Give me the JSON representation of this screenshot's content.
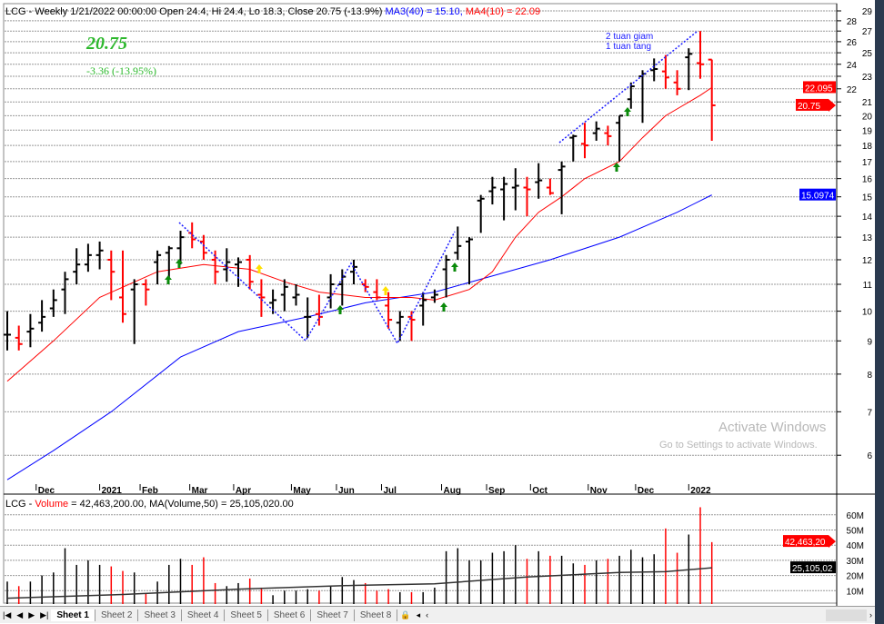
{
  "header": {
    "symbol": "LCG",
    "text": "LCG - Weekly 1/21/2022 00:00:00 Open 24.4, Hi 24.4, Lo 18.3, Close 20.75 (-13.9%)",
    "ma3": "MA3(40) = 15.10,",
    "ma4": "MA4(10) = 22.09"
  },
  "last_price": "20.75",
  "change": "-3.36  (-13.95%)",
  "notes": [
    "2 tuan giam",
    "1 tuan tang"
  ],
  "price_axis": {
    "ticks": [
      29,
      28,
      27,
      26,
      25,
      24,
      23,
      22,
      21,
      20,
      19,
      18,
      17,
      16,
      15,
      14,
      13,
      12,
      11,
      10,
      9,
      8,
      7,
      6
    ],
    "badges": {
      "ma4": "22.095",
      "close": "20.75",
      "ma3": "15.0974"
    }
  },
  "months": [
    {
      "label": "Dec",
      "bar": 2.5
    },
    {
      "label": "2021",
      "bar": 8
    },
    {
      "label": "Feb",
      "bar": 11.5
    },
    {
      "label": "Mar",
      "bar": 15.8
    },
    {
      "label": "Apr",
      "bar": 19.6
    },
    {
      "label": "May",
      "bar": 24.6
    },
    {
      "label": "Jun",
      "bar": 28.5
    },
    {
      "label": "Jul",
      "bar": 32.4
    },
    {
      "label": "Aug",
      "bar": 37.6
    },
    {
      "label": "Sep",
      "bar": 41.5
    },
    {
      "label": "Oct",
      "bar": 45.3
    },
    {
      "label": "Nov",
      "bar": 50.3
    },
    {
      "label": "Dec",
      "bar": 54.4
    },
    {
      "label": "2022",
      "bar": 59
    }
  ],
  "colors": {
    "up": "#000000",
    "down": "#ff0000",
    "ma10": "#ff0000",
    "ma40": "#0000ff"
  },
  "ohlc": [
    [
      9.2,
      10,
      8.7,
      9.2
    ],
    [
      9.1,
      9.5,
      8.7,
      8.9
    ],
    [
      9.3,
      9.9,
      8.8,
      9.4
    ],
    [
      9.6,
      10.4,
      9.3,
      9.8
    ],
    [
      10.1,
      10.8,
      9.8,
      10.4
    ],
    [
      10.8,
      11.5,
      9.9,
      11.2
    ],
    [
      11.5,
      12.5,
      11,
      11.8
    ],
    [
      11.8,
      12.7,
      11.5,
      12.2
    ],
    [
      12.2,
      12.8,
      11.6,
      12.4
    ],
    [
      12,
      12.4,
      10.4,
      11.5
    ],
    [
      10.5,
      12.4,
      9.6,
      9.9
    ],
    [
      10.8,
      11.2,
      8.9,
      11
    ],
    [
      11,
      11.2,
      10.2,
      10.8
    ],
    [
      11.9,
      12.4,
      11,
      12.2
    ],
    [
      12.3,
      12.6,
      11.2,
      12.5
    ],
    [
      12.5,
      13.3,
      11.8,
      13
    ],
    [
      13.2,
      13.7,
      12.5,
      12.9
    ],
    [
      12.8,
      13.1,
      12,
      12.3
    ],
    [
      12,
      12.4,
      11,
      11.5
    ],
    [
      11.6,
      12.5,
      11.1,
      11.9
    ],
    [
      11.8,
      12.1,
      10.9,
      11.9
    ],
    [
      12,
      12.2,
      10.8,
      11.1
    ],
    [
      10.6,
      11.2,
      9.8,
      10.5
    ],
    [
      10.3,
      10.8,
      9.9,
      10.4
    ],
    [
      10.6,
      11.2,
      10,
      10.9
    ],
    [
      10.5,
      11,
      10.2,
      10.6
    ],
    [
      9.8,
      10.5,
      9.1,
      9.8
    ],
    [
      9.9,
      10.6,
      9.5,
      9.8
    ],
    [
      10.5,
      11.4,
      10.1,
      11
    ],
    [
      11,
      11.6,
      10.2,
      11.3
    ],
    [
      11.5,
      12,
      11,
      11.7
    ],
    [
      11,
      11.2,
      10.7,
      10.9
    ],
    [
      10.7,
      11.2,
      10.4,
      10.5
    ],
    [
      10.2,
      10.7,
      9.4,
      9.7
    ],
    [
      9.6,
      10,
      9,
      9.8
    ],
    [
      9.8,
      10,
      9,
      9.7
    ],
    [
      10.2,
      10.7,
      9.5,
      10.4
    ],
    [
      10.5,
      10.8,
      10.3,
      10.6
    ],
    [
      11.6,
      12.2,
      10.5,
      12
    ],
    [
      12.3,
      13.5,
      12,
      12.6
    ],
    [
      12.8,
      13,
      11,
      12.9
    ],
    [
      14.8,
      15.1,
      13.2,
      14.9
    ],
    [
      15.3,
      16.1,
      14.6,
      15.5
    ],
    [
      15.4,
      16.1,
      13.8,
      15.7
    ],
    [
      15.5,
      16.6,
      14.3,
      15.6
    ],
    [
      15.5,
      16.1,
      14,
      15.4
    ],
    [
      15.8,
      16.9,
      14.9,
      15.9
    ],
    [
      15.5,
      16,
      15.1,
      15.2
    ],
    [
      16.5,
      17,
      14.1,
      16.7
    ],
    [
      18.5,
      18.7,
      17,
      18.6
    ],
    [
      18.1,
      19.5,
      17.2,
      18
    ],
    [
      18.8,
      19.6,
      18.3,
      19.1
    ],
    [
      18.8,
      19.3,
      18,
      18.6
    ],
    [
      19.5,
      20,
      17,
      20
    ],
    [
      21.2,
      22.5,
      20.5,
      22.2
    ],
    [
      23,
      23.5,
      19.5,
      23.2
    ],
    [
      23.5,
      24.5,
      22.6,
      23.6
    ],
    [
      23.4,
      24.8,
      22,
      22.9
    ],
    [
      22.5,
      23.5,
      21.5,
      22
    ],
    [
      24.6,
      25.4,
      21.9,
      24.9
    ],
    [
      24.1,
      27,
      22.8,
      24
    ],
    [
      24.4,
      24.4,
      18.3,
      20.75
    ]
  ],
  "ma10": [
    [
      0,
      7.8
    ],
    [
      4,
      9
    ],
    [
      8,
      10.5
    ],
    [
      13,
      11.5
    ],
    [
      17,
      11.8
    ],
    [
      21,
      11.6
    ],
    [
      24,
      11.1
    ],
    [
      27,
      10.7
    ],
    [
      31,
      10.5
    ],
    [
      35,
      10.5
    ],
    [
      37,
      10.4
    ],
    [
      40,
      10.8
    ],
    [
      42,
      11.5
    ],
    [
      44,
      13
    ],
    [
      46,
      14.2
    ],
    [
      48,
      15
    ],
    [
      50,
      16
    ],
    [
      53,
      17
    ],
    [
      55,
      18.5
    ],
    [
      57,
      20
    ],
    [
      60,
      21.5
    ],
    [
      61,
      22.1
    ]
  ],
  "ma40": [
    [
      0,
      5.5
    ],
    [
      4,
      6.1
    ],
    [
      9,
      7
    ],
    [
      15,
      8.5
    ],
    [
      20,
      9.3
    ],
    [
      26,
      9.8
    ],
    [
      31,
      10.3
    ],
    [
      37,
      10.7
    ],
    [
      41,
      11.2
    ],
    [
      47,
      12
    ],
    [
      53,
      13
    ],
    [
      58,
      14.2
    ],
    [
      61,
      15.1
    ]
  ],
  "volume_header": {
    "prefix": "LCG - ",
    "label": "Volume",
    "text": " = 42,463,200.00, MA(Volume,50) = 25,105,020.00"
  },
  "volume_axis": {
    "ticks": [
      "60M",
      "50M",
      "40M",
      "30M",
      "20M",
      "10M"
    ],
    "badges": {
      "volume": "42,463,20",
      "ma": "25,105,02"
    }
  },
  "volume": [
    16,
    13,
    16,
    20,
    22,
    38,
    27,
    30,
    27,
    26,
    23,
    22,
    8,
    16,
    27,
    31,
    27,
    32,
    15,
    13,
    15,
    18,
    12,
    7,
    10,
    10,
    11,
    10,
    13,
    19,
    17,
    15,
    10,
    11,
    9,
    9,
    9,
    12,
    36,
    38,
    30,
    30,
    35,
    36,
    40,
    31,
    36,
    33,
    33,
    28,
    27,
    30,
    31,
    33,
    37,
    32,
    34,
    51,
    35,
    47,
    65,
    42
  ],
  "vol_ma": [
    [
      0,
      5
    ],
    [
      10,
      7.5
    ],
    [
      20,
      11
    ],
    [
      30,
      13.5
    ],
    [
      37,
      14.5
    ],
    [
      45,
      19
    ],
    [
      53,
      22
    ],
    [
      57,
      22.5
    ],
    [
      61,
      25.1
    ]
  ],
  "tabs": [
    "Sheet 1",
    "Sheet 2",
    "Sheet 3",
    "Sheet 4",
    "Sheet 5",
    "Sheet 6",
    "Sheet 7",
    "Sheet 8"
  ],
  "watermark": {
    "title": "Activate Windows",
    "sub": "Go to Settings to activate Windows."
  }
}
